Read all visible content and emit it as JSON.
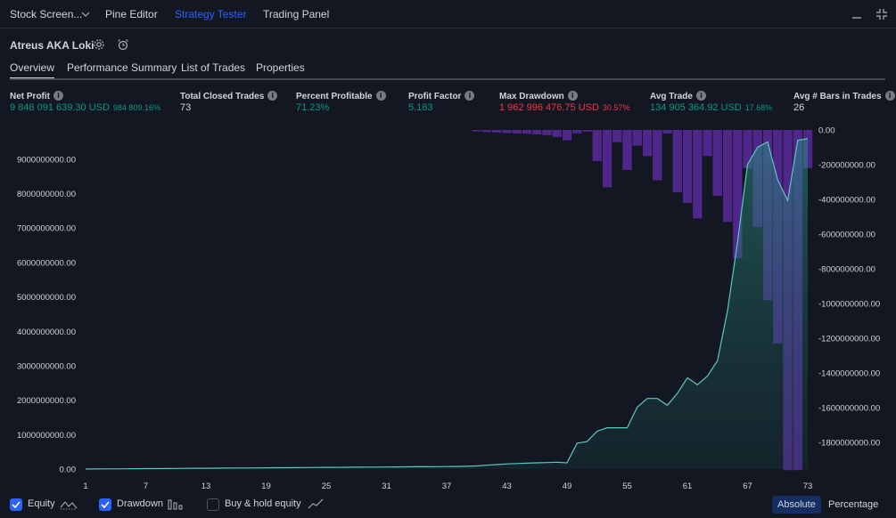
{
  "tabs": [
    {
      "label": "Stock Screen..."
    },
    {
      "label": "Pine Editor"
    },
    {
      "label": "Strategy Tester"
    },
    {
      "label": "Trading Panel"
    }
  ],
  "strategy": {
    "name": "Atreus AKA Loki"
  },
  "subtabs": [
    {
      "label": "Overview"
    },
    {
      "label": "Performance Summary"
    },
    {
      "label": "List of Trades"
    },
    {
      "label": "Properties"
    }
  ],
  "metrics": {
    "net_profit": {
      "label": "Net Profit",
      "value": "9 848 091 639.30 USD",
      "pct": "984 809.16%"
    },
    "total_closed_trades": {
      "label": "Total Closed Trades",
      "value": "73"
    },
    "percent_profitable": {
      "label": "Percent Profitable",
      "value": "71.23%"
    },
    "profit_factor": {
      "label": "Profit Factor",
      "value": "5.183"
    },
    "max_drawdown": {
      "label": "Max Drawdown",
      "value": "1 962 996 476.75 USD",
      "pct": "30.57%"
    },
    "avg_trade": {
      "label": "Avg Trade",
      "value": "134 905 364.92 USD",
      "pct": "17.68%"
    },
    "avg_bars": {
      "label": "Avg # Bars in Trades",
      "value": "26"
    }
  },
  "legend": {
    "equity": "Equity",
    "drawdown": "Drawdown",
    "buy_hold": "Buy & hold equity",
    "equity_checked": true,
    "drawdown_checked": true,
    "buy_hold_checked": false
  },
  "mode": {
    "absolute": "Absolute",
    "percentage": "Percentage",
    "selected": "Absolute"
  },
  "colors": {
    "accent": "#2962ff",
    "positive": "#089981",
    "negative": "#f23645",
    "equity_line": "#5bc8c0",
    "drawdown_bar": "#5b2a9e"
  },
  "chart_data": {
    "type": "area",
    "x": [
      1,
      2,
      3,
      4,
      5,
      6,
      7,
      8,
      9,
      10,
      11,
      12,
      13,
      14,
      15,
      16,
      17,
      18,
      19,
      20,
      21,
      22,
      23,
      24,
      25,
      26,
      27,
      28,
      29,
      30,
      31,
      32,
      33,
      34,
      35,
      36,
      37,
      38,
      39,
      40,
      41,
      42,
      43,
      44,
      45,
      46,
      47,
      48,
      49,
      50,
      51,
      52,
      53,
      54,
      55,
      56,
      57,
      58,
      59,
      60,
      61,
      62,
      63,
      64,
      65,
      66,
      67,
      68,
      69,
      70,
      71,
      72,
      73
    ],
    "xticks": [
      "1",
      "7",
      "13",
      "19",
      "25",
      "31",
      "37",
      "43",
      "49",
      "55",
      "61",
      "67",
      "73"
    ],
    "left_axis": {
      "ticks": [
        "9000000000.00",
        "8000000000.00",
        "7000000000.00",
        "6000000000.00",
        "5000000000.00",
        "4000000000.00",
        "3000000000.00",
        "2000000000.00",
        "1000000000.00",
        "0.00"
      ],
      "ylim": [
        0,
        9850000000
      ]
    },
    "right_axis": {
      "ticks": [
        "0.00",
        "-200000000.00",
        "-400000000.00",
        "-600000000.00",
        "-800000000.00",
        "-1000000000.00",
        "-1200000000.00",
        "-1400000000.00",
        "-1600000000.00",
        "-1800000000.00"
      ],
      "ylim": [
        -2000000000,
        0
      ]
    },
    "series": [
      {
        "name": "Equity",
        "values": [
          0,
          2000000,
          4000000,
          6000000,
          8000000,
          10000000,
          12000000,
          14000000,
          16000000,
          18000000,
          20000000,
          22000000,
          24000000,
          26000000,
          28000000,
          30000000,
          32000000,
          34000000,
          36000000,
          38000000,
          40000000,
          42000000,
          44000000,
          46000000,
          48000000,
          50000000,
          52000000,
          54000000,
          56000000,
          58000000,
          60000000,
          62000000,
          64000000,
          66000000,
          68000000,
          70000000,
          72000000,
          75000000,
          80000000,
          90000000,
          110000000,
          130000000,
          150000000,
          160000000,
          170000000,
          180000000,
          190000000,
          200000000,
          180000000,
          750000000,
          800000000,
          1100000000,
          1200000000,
          1200000000,
          1200000000,
          1800000000,
          2050000000,
          2050000000,
          1850000000,
          2200000000,
          2650000000,
          2450000000,
          2700000000,
          3150000000,
          4600000000,
          6600000000,
          8850000000,
          9350000000,
          9500000000,
          8400000000,
          7800000000,
          9550000000,
          9600000000
        ]
      },
      {
        "name": "Drawdown",
        "values": [
          0,
          0,
          0,
          0,
          0,
          0,
          0,
          0,
          0,
          0,
          0,
          0,
          0,
          0,
          0,
          0,
          0,
          0,
          0,
          0,
          0,
          0,
          0,
          0,
          0,
          0,
          0,
          0,
          0,
          0,
          0,
          0,
          0,
          0,
          0,
          0,
          0,
          0,
          0,
          -8000000,
          -12000000,
          -15000000,
          -18000000,
          -20000000,
          -22000000,
          -25000000,
          -30000000,
          -40000000,
          -60000000,
          -20000000,
          -10000000,
          -180000000,
          -330000000,
          -70000000,
          -230000000,
          -90000000,
          -150000000,
          -290000000,
          -20000000,
          -360000000,
          -420000000,
          -510000000,
          -150000000,
          -380000000,
          -530000000,
          -740000000,
          -220000000,
          -560000000,
          -980000000,
          -1230000000,
          -1960000000,
          -1960000000,
          -220000000
        ]
      }
    ]
  }
}
